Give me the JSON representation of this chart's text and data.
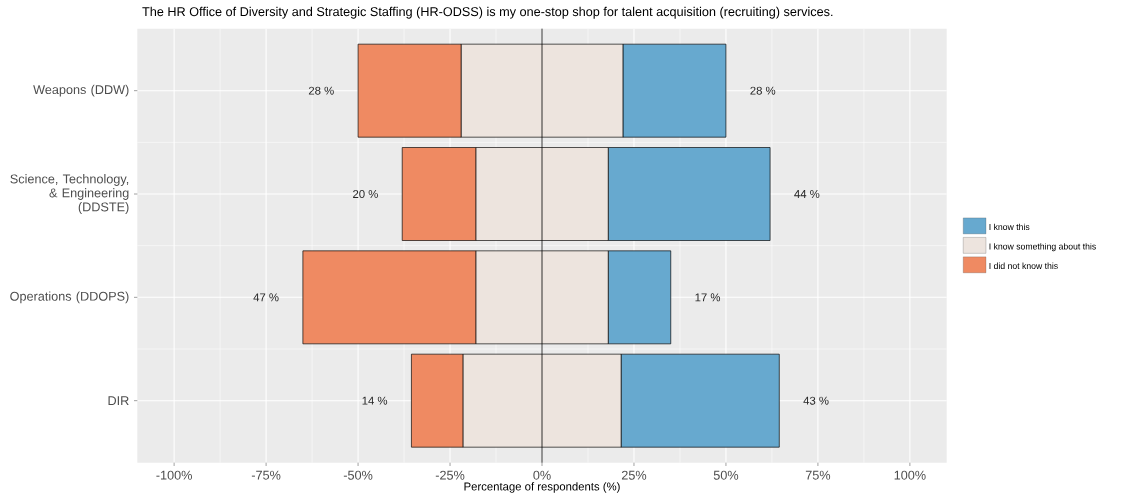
{
  "chart_data": {
    "type": "bar",
    "orientation": "horizontal",
    "title": "The HR Office of Diversity and Strategic Staffing (HR-ODSS) is my one-stop shop for talent acquisition (recruiting) services.",
    "xlabel": "Percentage of respondents (%)",
    "categories": [
      "Weapons (DDW)",
      "Science, Technology, & Engineering (DDSTE)",
      "Operations (DDOPS)",
      "DIR"
    ],
    "series": [
      {
        "name": "I know this",
        "color": "#67a9cf",
        "values": [
          28,
          44,
          17,
          43
        ],
        "base": [
          22,
          18,
          18,
          21.5
        ],
        "value_labels": [
          "28 %",
          "44 %",
          "17 %",
          "43 %"
        ]
      },
      {
        "name": "I know something about this",
        "color": "#ede4de",
        "values": [
          44,
          36,
          36,
          43
        ],
        "base": [
          -22,
          -18,
          -18,
          -21.5
        ]
      },
      {
        "name": "I did not know this",
        "color": "#ef8a62",
        "values": [
          28,
          20,
          47,
          14
        ],
        "base": [
          -50,
          -38,
          -65,
          -35.5
        ],
        "value_labels": [
          "28 %",
          "20 %",
          "47 %",
          "14 %"
        ]
      }
    ],
    "xlim": [
      -110,
      110
    ],
    "xticks": [
      {
        "value": -100,
        "label": "-100%"
      },
      {
        "value": -75,
        "label": "-75%"
      },
      {
        "value": -50,
        "label": "-50%"
      },
      {
        "value": -25,
        "label": "-25%"
      },
      {
        "value": 0,
        "label": "0%"
      },
      {
        "value": 25,
        "label": "25%"
      },
      {
        "value": 50,
        "label": "50%"
      },
      {
        "value": 75,
        "label": "75%"
      },
      {
        "value": 100,
        "label": "100%"
      }
    ],
    "ref_lines": [
      {
        "axis": "x",
        "value": 0,
        "color": "#000000"
      }
    ],
    "grid": true,
    "legend": "right"
  }
}
